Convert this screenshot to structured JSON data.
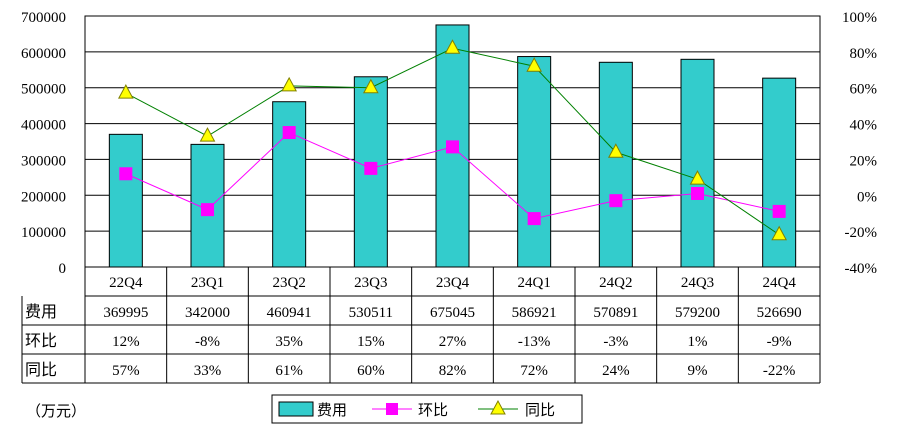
{
  "chart_data": {
    "type": "bar",
    "categories": [
      "22Q4",
      "23Q1",
      "23Q2",
      "23Q3",
      "23Q4",
      "24Q1",
      "24Q2",
      "24Q3",
      "24Q4"
    ],
    "series": [
      {
        "name": "费用",
        "kind": "bar",
        "axis": "left",
        "color": "#33CCCC",
        "values": [
          369995,
          342000,
          460941,
          530511,
          675045,
          586921,
          570891,
          579200,
          526690
        ]
      },
      {
        "name": "环比",
        "kind": "line",
        "axis": "right",
        "color": "#FF00FF",
        "marker": "square",
        "values": [
          12,
          -8,
          35,
          15,
          27,
          -13,
          -3,
          1,
          -9
        ]
      },
      {
        "name": "同比",
        "kind": "line",
        "axis": "right",
        "color": "#008000",
        "marker": "triangle",
        "marker_color": "#FFFF00",
        "values": [
          57,
          33,
          61,
          60,
          82,
          72,
          24,
          9,
          -22
        ]
      }
    ],
    "ylim_left": [
      0,
      700000
    ],
    "ylim_right": [
      -40,
      100
    ],
    "left_ticks": [
      "0",
      "100000",
      "200000",
      "300000",
      "400000",
      "500000",
      "600000",
      "700000"
    ],
    "right_ticks": [
      "-40%",
      "-20%",
      "0%",
      "20%",
      "40%",
      "60%",
      "80%",
      "100%"
    ],
    "grid": true,
    "legend_position": "bottom",
    "unit": "（万元）"
  },
  "table": {
    "rows": [
      {
        "header": "费用",
        "cells": [
          "369995",
          "342000",
          "460941",
          "530511",
          "675045",
          "586921",
          "570891",
          "579200",
          "526690"
        ]
      },
      {
        "header": "环比",
        "cells": [
          "12%",
          "-8%",
          "35%",
          "15%",
          "27%",
          "-13%",
          "-3%",
          "1%",
          "-9%"
        ]
      },
      {
        "header": "同比",
        "cells": [
          "57%",
          "33%",
          "61%",
          "60%",
          "82%",
          "72%",
          "24%",
          "9%",
          "-22%"
        ]
      }
    ]
  }
}
